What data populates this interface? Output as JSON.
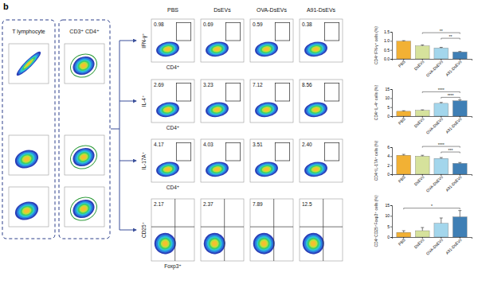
{
  "panel_label": "b",
  "gating": {
    "titles": [
      "T lymphocyte",
      "CD3⁺ CD4⁺"
    ]
  },
  "flow": {
    "columns": [
      "PBS",
      "DsEVs",
      "OVA-DsEVs",
      "A91-DsEVs"
    ],
    "rows": [
      {
        "y_label": "IFN-γ⁺",
        "x_label": "CD4⁺",
        "gates": [
          "0.98",
          "0.69",
          "0.59",
          "0.38"
        ]
      },
      {
        "y_label": "IL-4⁺",
        "x_label": "CD4⁺",
        "gates": [
          "2.69",
          "3.23",
          "7.12",
          "8.56"
        ]
      },
      {
        "y_label": "IL-17A⁺",
        "x_label": "CD4⁺",
        "gates": [
          "4.17",
          "4.03",
          "3.51",
          "2.40"
        ]
      },
      {
        "y_label": "CD25⁺",
        "x_label": "Foxp3⁺",
        "gates": [
          "2.17",
          "2.37",
          "7.89",
          "12.5"
        ]
      }
    ]
  },
  "chart_data": [
    {
      "type": "bar",
      "y_label": "CD4⁺IFN-γ⁺ cells (%)",
      "categories": [
        "PBS",
        "DsEVs",
        "OVA-DsEVs",
        "A91-DsEVs"
      ],
      "values": [
        0.98,
        0.72,
        0.6,
        0.38
      ],
      "errors": [
        0.03,
        0.05,
        0.04,
        0.03
      ],
      "colors": [
        "#f2b134",
        "#d6e29c",
        "#a3d6ec",
        "#3f7fb5"
      ],
      "ylim": [
        0,
        1.5
      ],
      "yticks": [
        {
          "value": 0,
          "label": "0.0"
        },
        {
          "value": 0.5,
          "label": "0.5"
        },
        {
          "value": 1,
          "label": "1.0"
        },
        {
          "value": 1.5,
          "label": "1.5"
        }
      ],
      "annotations": [
        "**",
        "**"
      ]
    },
    {
      "type": "bar",
      "y_label": "CD4⁺IL-4⁺ cells (%)",
      "categories": [
        "PBS",
        "DsEVs",
        "OVA-DsEVs",
        "A91-DsEVs"
      ],
      "values": [
        2.7,
        3.2,
        7.1,
        8.5
      ],
      "errors": [
        0.3,
        0.3,
        0.5,
        0.6
      ],
      "colors": [
        "#f2b134",
        "#d6e29c",
        "#a3d6ec",
        "#3f7fb5"
      ],
      "ylim": [
        0,
        15
      ],
      "yticks": [
        0,
        5,
        10,
        15
      ],
      "annotations": [
        "****",
        "****"
      ]
    },
    {
      "type": "bar",
      "y_label": "CD4⁺IL-17A⁺ cells (%)",
      "categories": [
        "PBS",
        "DsEVs",
        "OVA-DsEVs",
        "A91-DsEVs"
      ],
      "values": [
        4.2,
        4.0,
        3.5,
        2.4
      ],
      "errors": [
        0.2,
        0.2,
        0.2,
        0.2
      ],
      "colors": [
        "#f2b134",
        "#d6e29c",
        "#a3d6ec",
        "#3f7fb5"
      ],
      "ylim": [
        0,
        6
      ],
      "yticks": [
        0,
        2,
        4,
        6
      ],
      "annotations": [
        "****",
        "***"
      ]
    },
    {
      "type": "bar",
      "y_label": "CD4⁺CD25⁺Foxp3⁺ cells (%)",
      "categories": [
        "PBS",
        "DsEVs",
        "OVA-DsEVs",
        "A91-DsEVs"
      ],
      "values": [
        2.2,
        3.0,
        6.5,
        9.5
      ],
      "errors": [
        0.8,
        1.5,
        2.5,
        3.0
      ],
      "colors": [
        "#f2b134",
        "#d6e29c",
        "#a3d6ec",
        "#3f7fb5"
      ],
      "ylim": [
        0,
        15
      ],
      "yticks": [
        0,
        5,
        10,
        15
      ],
      "annotations": [
        "*"
      ]
    }
  ]
}
